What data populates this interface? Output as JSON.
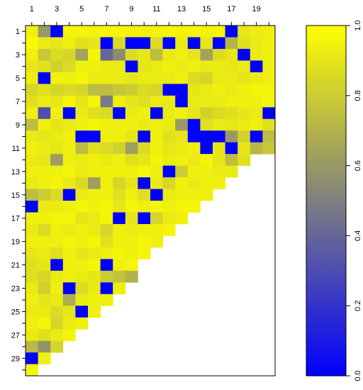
{
  "chart_data": {
    "type": "heatmap",
    "title": "",
    "xlabel": "",
    "ylabel": "",
    "n_cols": 20,
    "n_rows": 30,
    "x_tick_labels": [
      "1",
      "3",
      "5",
      "7",
      "9",
      "11",
      "13",
      "15",
      "17",
      "19"
    ],
    "y_tick_labels": [
      "1",
      "3",
      "5",
      "7",
      "9",
      "11",
      "13",
      "15",
      "17",
      "19",
      "21",
      "23",
      "25",
      "27",
      "29"
    ],
    "colorbar": {
      "range": [
        0.0,
        1.0
      ],
      "tick_labels": [
        "0.0",
        "0.2",
        "0.4",
        "0.6",
        "0.8",
        "1.0"
      ],
      "colors": [
        "#0000ff",
        "#ffff00"
      ]
    },
    "rows": [
      [
        0.94,
        0.6,
        0.0,
        0.96,
        0.96,
        0.95,
        0.96,
        0.96,
        0.95,
        0.95,
        0.95,
        0.96,
        0.95,
        0.96,
        0.95,
        0.96,
        0.0,
        0.9,
        0.93,
        0.94
      ],
      [
        0.98,
        0.92,
        0.9,
        0.94,
        0.88,
        0.9,
        0.0,
        0.86,
        0.0,
        0.0,
        0.86,
        0.0,
        0.92,
        0.0,
        0.9,
        0.0,
        0.7,
        0.88,
        0.92,
        0.94
      ],
      [
        0.94,
        0.78,
        0.86,
        0.84,
        0.64,
        0.96,
        0.4,
        0.55,
        0.86,
        0.9,
        0.74,
        0.92,
        0.94,
        0.9,
        0.64,
        0.86,
        0.9,
        0.0,
        0.92,
        0.94
      ],
      [
        0.9,
        0.88,
        0.82,
        0.86,
        0.94,
        0.94,
        0.92,
        0.92,
        0.0,
        0.9,
        0.92,
        0.94,
        0.92,
        0.94,
        0.92,
        0.92,
        0.9,
        0.92,
        0.0,
        0.94
      ],
      [
        0.94,
        0.0,
        0.95,
        0.94,
        0.96,
        0.93,
        0.93,
        0.92,
        0.9,
        0.92,
        0.92,
        0.92,
        0.94,
        0.86,
        0.84,
        0.92,
        0.92,
        0.9,
        0.92,
        0.94
      ],
      [
        0.84,
        0.88,
        0.84,
        0.86,
        0.84,
        0.74,
        0.74,
        0.78,
        0.8,
        0.86,
        0.84,
        0.0,
        0.0,
        0.9,
        0.92,
        0.94,
        0.92,
        0.94,
        0.96,
        0.96
      ],
      [
        0.88,
        0.92,
        0.9,
        0.96,
        0.9,
        0.96,
        0.48,
        0.94,
        0.9,
        0.88,
        0.92,
        0.92,
        0.0,
        0.92,
        0.92,
        0.92,
        0.94,
        0.94,
        0.94,
        0.96
      ],
      [
        0.94,
        0.3,
        0.94,
        0.0,
        0.92,
        0.88,
        0.86,
        0.0,
        0.92,
        0.94,
        0.0,
        0.92,
        0.94,
        0.9,
        0.82,
        0.86,
        0.88,
        0.9,
        0.92,
        0.0
      ],
      [
        0.74,
        0.94,
        0.9,
        0.92,
        0.94,
        0.96,
        0.94,
        0.94,
        0.94,
        0.92,
        0.94,
        0.92,
        0.6,
        0.0,
        0.88,
        0.92,
        0.9,
        0.92,
        0.94,
        0.88
      ],
      [
        0.92,
        0.9,
        0.92,
        0.94,
        0.0,
        0.0,
        0.94,
        0.94,
        0.9,
        0.0,
        0.94,
        0.88,
        0.9,
        0.0,
        0.0,
        0.0,
        0.6,
        0.82,
        0.0,
        0.74
      ],
      [
        0.94,
        0.92,
        0.9,
        0.94,
        0.74,
        0.88,
        0.86,
        0.82,
        0.62,
        0.86,
        0.94,
        0.9,
        0.92,
        0.94,
        0.0,
        0.9,
        0.0,
        0.9,
        0.72,
        0.78
      ],
      [
        0.92,
        0.9,
        0.62,
        0.94,
        0.92,
        0.94,
        0.92,
        0.94,
        0.88,
        0.9,
        0.96,
        0.92,
        0.94,
        0.92,
        0.96,
        0.9,
        0.74,
        0.88,
        null,
        null
      ],
      [
        0.94,
        0.94,
        0.94,
        0.96,
        0.92,
        0.94,
        0.94,
        0.94,
        0.94,
        0.96,
        0.94,
        0.0,
        0.8,
        0.94,
        0.94,
        0.92,
        0.92,
        null,
        null,
        null
      ],
      [
        0.92,
        0.94,
        0.96,
        0.92,
        0.86,
        0.62,
        0.94,
        0.84,
        0.9,
        0.0,
        0.92,
        0.84,
        0.94,
        0.92,
        0.94,
        0.94,
        null,
        null,
        null,
        null
      ],
      [
        0.74,
        0.8,
        0.86,
        0.0,
        0.92,
        0.94,
        0.94,
        0.88,
        0.94,
        0.88,
        0.0,
        0.92,
        0.94,
        0.94,
        0.94,
        null,
        null,
        null,
        null,
        null
      ],
      [
        0.0,
        0.92,
        0.92,
        0.94,
        0.96,
        0.94,
        0.96,
        0.9,
        0.96,
        0.94,
        0.96,
        0.94,
        0.96,
        0.96,
        null,
        null,
        null,
        null,
        null,
        null
      ],
      [
        0.94,
        0.94,
        0.96,
        0.96,
        0.9,
        0.92,
        0.96,
        0.0,
        0.9,
        0.0,
        0.84,
        0.92,
        0.94,
        null,
        null,
        null,
        null,
        null,
        null,
        null
      ],
      [
        0.92,
        0.86,
        0.94,
        0.92,
        0.94,
        0.92,
        0.84,
        0.94,
        0.92,
        0.94,
        0.94,
        0.96,
        null,
        null,
        null,
        null,
        null,
        null,
        null,
        null
      ],
      [
        0.94,
        0.94,
        0.94,
        0.96,
        0.94,
        0.96,
        0.88,
        0.94,
        0.94,
        0.96,
        0.94,
        null,
        null,
        null,
        null,
        null,
        null,
        null,
        null,
        null
      ],
      [
        0.9,
        0.92,
        0.88,
        0.94,
        0.9,
        0.92,
        0.94,
        0.96,
        0.94,
        0.96,
        null,
        null,
        null,
        null,
        null,
        null,
        null,
        null,
        null,
        null
      ],
      [
        0.88,
        0.9,
        0.0,
        0.94,
        0.94,
        0.96,
        0.0,
        0.94,
        0.96,
        null,
        null,
        null,
        null,
        null,
        null,
        null,
        null,
        null,
        null,
        null
      ],
      [
        0.88,
        0.84,
        0.92,
        0.94,
        0.92,
        0.9,
        0.8,
        0.76,
        0.7,
        null,
        null,
        null,
        null,
        null,
        null,
        null,
        null,
        null,
        null,
        null
      ],
      [
        0.92,
        0.82,
        0.94,
        0.0,
        0.86,
        0.92,
        0.0,
        0.94,
        null,
        null,
        null,
        null,
        null,
        null,
        null,
        null,
        null,
        null,
        null,
        null
      ],
      [
        0.94,
        0.9,
        0.92,
        0.68,
        0.92,
        0.94,
        0.94,
        null,
        null,
        null,
        null,
        null,
        null,
        null,
        null,
        null,
        null,
        null,
        null,
        null
      ],
      [
        0.92,
        0.92,
        0.86,
        0.9,
        0.0,
        0.94,
        null,
        null,
        null,
        null,
        null,
        null,
        null,
        null,
        null,
        null,
        null,
        null,
        null,
        null
      ],
      [
        0.94,
        0.96,
        0.84,
        0.92,
        0.94,
        null,
        null,
        null,
        null,
        null,
        null,
        null,
        null,
        null,
        null,
        null,
        null,
        null,
        null,
        null
      ],
      [
        0.92,
        0.88,
        0.92,
        0.96,
        null,
        null,
        null,
        null,
        null,
        null,
        null,
        null,
        null,
        null,
        null,
        null,
        null,
        null,
        null,
        null
      ],
      [
        0.72,
        0.58,
        0.84,
        null,
        null,
        null,
        null,
        null,
        null,
        null,
        null,
        null,
        null,
        null,
        null,
        null,
        null,
        null,
        null,
        null
      ],
      [
        0.0,
        0.94,
        null,
        null,
        null,
        null,
        null,
        null,
        null,
        null,
        null,
        null,
        null,
        null,
        null,
        null,
        null,
        null,
        null,
        null
      ],
      [
        0.96,
        null,
        null,
        null,
        null,
        null,
        null,
        null,
        null,
        null,
        null,
        null,
        null,
        null,
        null,
        null,
        null,
        null,
        null,
        null
      ]
    ]
  }
}
